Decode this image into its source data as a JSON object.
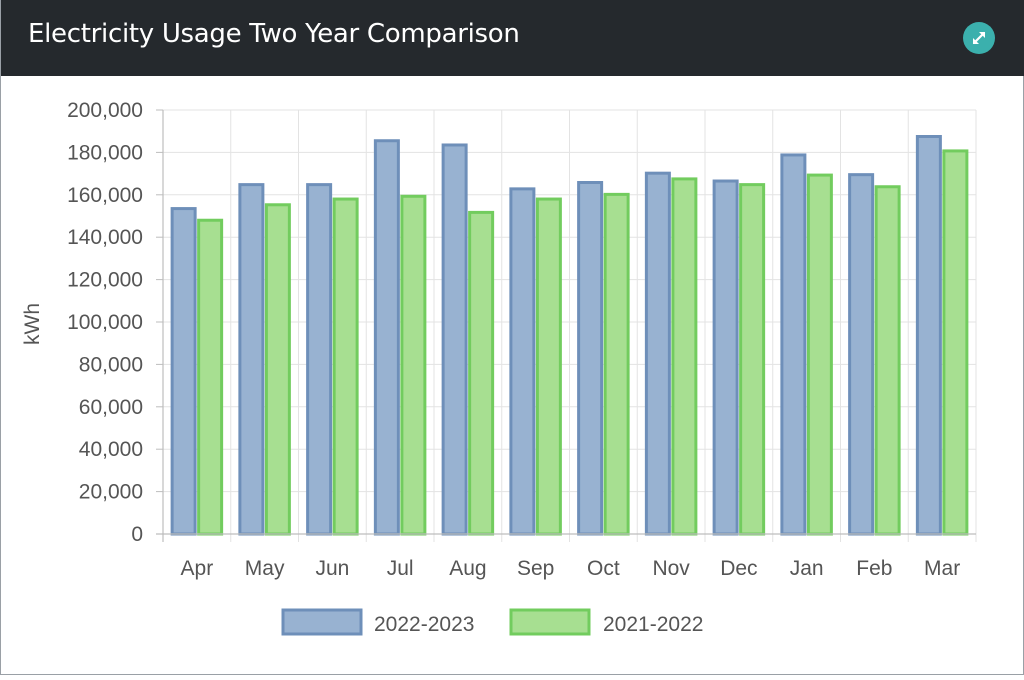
{
  "header": {
    "title": "Electricity Usage Two Year Comparison",
    "expand_icon": "expand-arrows-icon"
  },
  "colors": {
    "header_bg": "#25292d",
    "expand_button": "#3bb0ad",
    "series_1_fill": "#98b2d1",
    "series_1_border": "#6e8fb9",
    "series_2_fill": "#a7df91",
    "series_2_border": "#72cc5e"
  },
  "chart_data": {
    "type": "bar",
    "categories": [
      "Apr",
      "May",
      "Jun",
      "Jul",
      "Aug",
      "Sep",
      "Oct",
      "Nov",
      "Dec",
      "Jan",
      "Feb",
      "Mar"
    ],
    "series": [
      {
        "name": "2022-2023",
        "values": [
          153500,
          164800,
          164800,
          185500,
          183500,
          162800,
          165800,
          170200,
          166500,
          178800,
          169500,
          187500
        ]
      },
      {
        "name": "2021-2022",
        "values": [
          148000,
          155300,
          158000,
          159300,
          151700,
          158000,
          160200,
          167500,
          164800,
          169300,
          163800,
          180700
        ]
      }
    ],
    "ylabel": "kWh",
    "ylim": [
      0,
      200000
    ],
    "yticks": [
      "0",
      "20,000",
      "40,000",
      "60,000",
      "80,000",
      "100,000",
      "120,000",
      "140,000",
      "160,000",
      "180,000",
      "200,000"
    ],
    "grid": true,
    "legend": "bottom"
  }
}
